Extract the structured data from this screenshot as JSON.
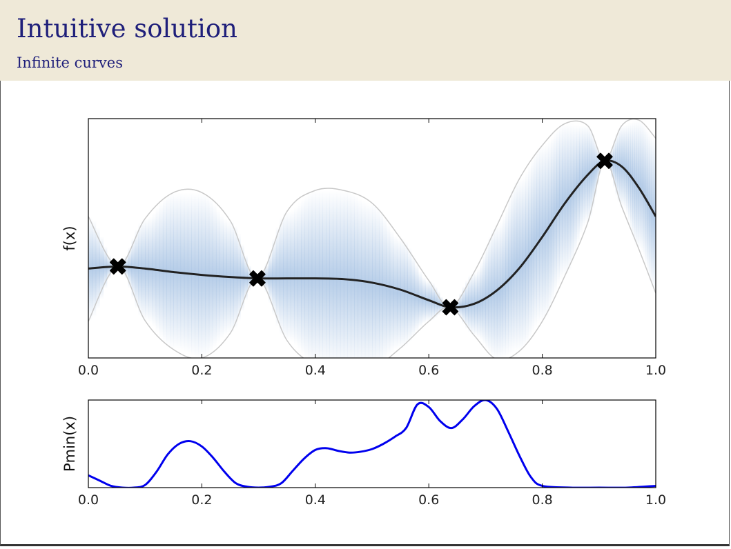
{
  "slide": {
    "title": "Intuitive solution",
    "subtitle": "Infinite curves"
  },
  "colors": {
    "header_bg": "#efe9d8",
    "title_text": "#1f1f7a",
    "mean_line": "#222222",
    "band_fill": "#a9c4e4",
    "envelope": "#c8c8c8",
    "pmin_line": "#0000ee"
  },
  "chart_data": [
    {
      "type": "line",
      "title": "",
      "xlabel": "",
      "ylabel": "f(x)",
      "xlim": [
        0.0,
        1.0
      ],
      "ylim": [
        -1.3,
        2.1
      ],
      "xticks": [
        "0.0",
        "0.2",
        "0.4",
        "0.6",
        "0.8",
        "1.0"
      ],
      "grid": false,
      "observations": [
        {
          "x": 0.052,
          "y": 0.0
        },
        {
          "x": 0.298,
          "y": -0.17
        },
        {
          "x": 0.638,
          "y": -0.58
        },
        {
          "x": 0.91,
          "y": 1.5
        }
      ],
      "series": [
        {
          "x": [
            0.0,
            0.052,
            0.1,
            0.15,
            0.2,
            0.25,
            0.298,
            0.35,
            0.4,
            0.45,
            0.5,
            0.55,
            0.6,
            0.638,
            0.68,
            0.72,
            0.76,
            0.8,
            0.84,
            0.88,
            0.91,
            0.94,
            0.97,
            1.0
          ],
          "y": [
            -0.03,
            0.0,
            -0.03,
            -0.08,
            -0.12,
            -0.15,
            -0.17,
            -0.17,
            -0.17,
            -0.18,
            -0.23,
            -0.33,
            -0.48,
            -0.58,
            -0.53,
            -0.34,
            -0.02,
            0.42,
            0.9,
            1.3,
            1.5,
            1.42,
            1.12,
            0.71
          ]
        }
      ],
      "band": {
        "x": [
          0.0,
          0.052,
          0.1,
          0.15,
          0.2,
          0.25,
          0.298,
          0.35,
          0.4,
          0.45,
          0.5,
          0.55,
          0.6,
          0.638,
          0.68,
          0.72,
          0.76,
          0.8,
          0.84,
          0.88,
          0.91,
          0.94,
          0.97,
          1.0
        ],
        "upper": [
          0.71,
          0.0,
          0.68,
          1.05,
          1.05,
          0.65,
          -0.17,
          0.78,
          1.08,
          1.08,
          0.9,
          0.4,
          -0.2,
          -0.58,
          -0.08,
          0.58,
          1.25,
          1.72,
          2.03,
          2.0,
          1.5,
          2.0,
          2.08,
          1.82
        ],
        "lower": [
          -0.78,
          0.0,
          -0.77,
          -1.18,
          -1.3,
          -0.95,
          -0.17,
          -1.05,
          -1.4,
          -1.45,
          -1.45,
          -1.16,
          -0.78,
          -0.58,
          -0.98,
          -1.32,
          -1.2,
          -0.78,
          -0.13,
          0.62,
          1.5,
          0.85,
          0.25,
          -0.38
        ]
      }
    },
    {
      "type": "line",
      "title": "",
      "xlabel": "",
      "ylabel": "Pmin(x)",
      "xlim": [
        0.0,
        1.0
      ],
      "ylim": [
        0.0,
        1.0
      ],
      "xticks": [
        "0.0",
        "0.2",
        "0.4",
        "0.6",
        "0.8",
        "1.0"
      ],
      "grid": false,
      "series": [
        {
          "x": [
            0.0,
            0.02,
            0.04,
            0.06,
            0.08,
            0.1,
            0.12,
            0.14,
            0.16,
            0.18,
            0.2,
            0.22,
            0.24,
            0.26,
            0.28,
            0.3,
            0.32,
            0.34,
            0.36,
            0.38,
            0.4,
            0.42,
            0.44,
            0.46,
            0.48,
            0.5,
            0.52,
            0.54,
            0.56,
            0.58,
            0.6,
            0.62,
            0.64,
            0.66,
            0.68,
            0.7,
            0.72,
            0.74,
            0.76,
            0.78,
            0.8,
            0.85,
            0.9,
            0.95,
            1.0
          ],
          "y": [
            0.14,
            0.08,
            0.02,
            0.0,
            0.0,
            0.03,
            0.18,
            0.38,
            0.5,
            0.53,
            0.47,
            0.34,
            0.18,
            0.05,
            0.01,
            0.0,
            0.01,
            0.05,
            0.19,
            0.33,
            0.43,
            0.45,
            0.42,
            0.4,
            0.41,
            0.44,
            0.5,
            0.58,
            0.68,
            0.95,
            0.92,
            0.76,
            0.68,
            0.78,
            0.93,
            1.0,
            0.9,
            0.64,
            0.36,
            0.12,
            0.02,
            0.0,
            0.0,
            0.0,
            0.02
          ]
        }
      ]
    }
  ]
}
